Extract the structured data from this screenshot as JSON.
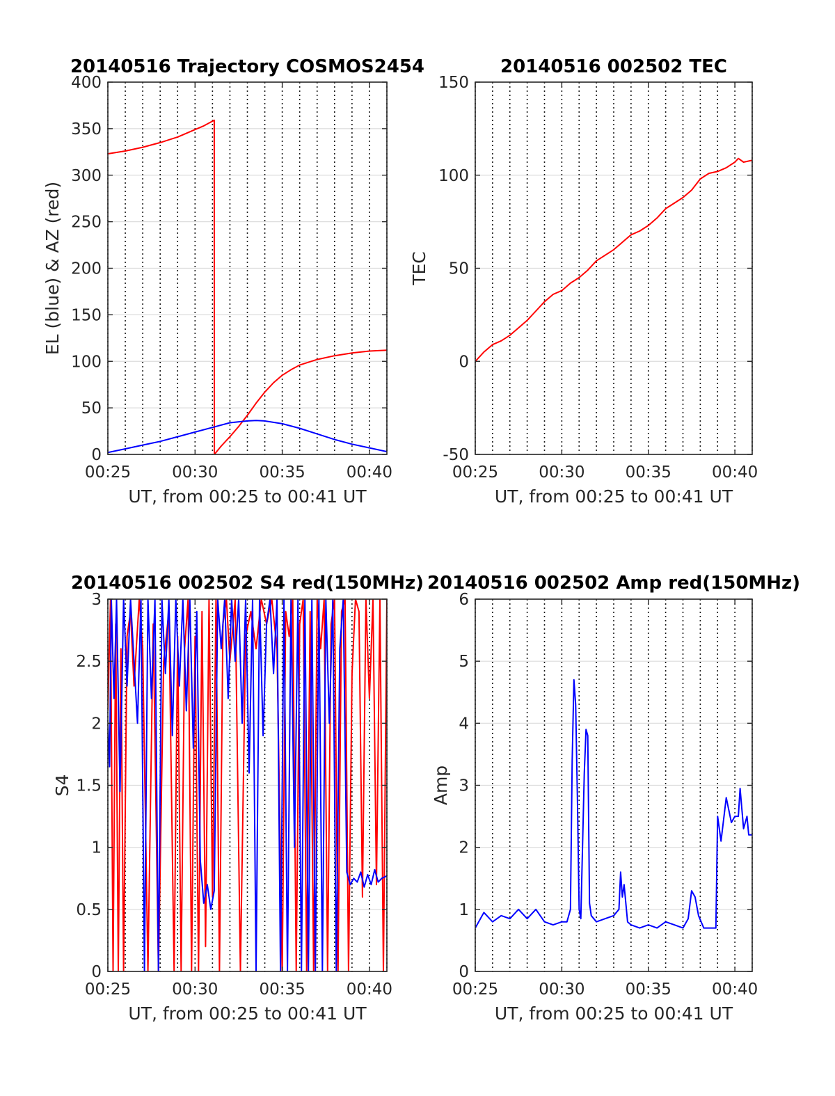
{
  "chart_data": [
    {
      "type": "line",
      "title": "20140516 Trajectory COSMOS2454",
      "xlabel": "UT, from 00:25 to 00:41 UT",
      "ylabel": "EL (blue) & AZ (red)",
      "xlim": [
        25,
        41
      ],
      "ylim": [
        0,
        400
      ],
      "xticks": [
        25,
        30,
        35,
        40
      ],
      "xtick_labels": [
        "00:25",
        "00:30",
        "00:35",
        "00:40"
      ],
      "yticks": [
        0,
        50,
        100,
        150,
        200,
        250,
        300,
        350,
        400
      ],
      "ytick_labels": [
        "0",
        "50",
        "100",
        "150",
        "200",
        "250",
        "300",
        "350",
        "400"
      ],
      "grid": true,
      "series": [
        {
          "color": "#ff0000",
          "x": [
            25,
            26,
            27,
            28,
            29,
            30,
            30.5,
            31.1,
            31.11,
            31.5,
            32,
            32.5,
            33,
            33.5,
            34,
            34.5,
            35,
            35.5,
            36,
            37,
            38,
            39,
            40,
            41
          ],
          "y": [
            323,
            326,
            330,
            335,
            341,
            349,
            353,
            359,
            0,
            9,
            19,
            30,
            42,
            55,
            67,
            77,
            85,
            91,
            96,
            102,
            106,
            109,
            111,
            112
          ]
        },
        {
          "color": "#0000ff",
          "x": [
            25,
            26,
            27,
            28,
            29,
            30,
            31,
            32,
            33,
            33.5,
            34,
            35,
            36,
            37,
            38,
            39,
            40,
            41
          ],
          "y": [
            2,
            6,
            10,
            14,
            19,
            24,
            29,
            34,
            36,
            36.5,
            36,
            33,
            28,
            22,
            16,
            11,
            7,
            3
          ]
        }
      ]
    },
    {
      "type": "line",
      "title": "20140516 002502 TEC",
      "xlabel": "UT, from 00:25 to 00:41 UT",
      "ylabel": "TEC",
      "xlim": [
        25,
        41
      ],
      "ylim": [
        -50,
        150
      ],
      "xticks": [
        25,
        30,
        35,
        40
      ],
      "xtick_labels": [
        "00:25",
        "00:30",
        "00:35",
        "00:40"
      ],
      "yticks": [
        -50,
        0,
        50,
        100,
        150
      ],
      "ytick_labels": [
        "-50",
        "0",
        "50",
        "100",
        "150"
      ],
      "grid": true,
      "series": [
        {
          "color": "#ff0000",
          "x": [
            25,
            25.5,
            26,
            26.5,
            27,
            27.5,
            28,
            28.5,
            29,
            29.5,
            30,
            30.5,
            31,
            31.5,
            32,
            32.5,
            33,
            33.5,
            34,
            34.5,
            35,
            35.5,
            36,
            36.5,
            37,
            37.5,
            38,
            38.5,
            39,
            39.5,
            40,
            40.2,
            40.5,
            41
          ],
          "y": [
            0,
            5,
            9,
            11,
            14,
            18,
            22,
            27,
            32,
            36,
            38,
            42,
            45,
            49,
            54,
            57,
            60,
            64,
            68,
            70,
            73,
            77,
            82,
            85,
            88,
            92,
            98,
            101,
            102,
            104,
            107,
            109,
            107,
            108
          ]
        }
      ]
    },
    {
      "type": "line",
      "title": "20140516 002502 S4 red(150MHz)",
      "xlabel": "UT, from 00:25 to 00:41 UT",
      "ylabel": "S4",
      "xlim": [
        25,
        41
      ],
      "ylim": [
        0,
        3
      ],
      "xticks": [
        25,
        30,
        35,
        40
      ],
      "xtick_labels": [
        "00:25",
        "00:30",
        "00:35",
        "00:40"
      ],
      "yticks": [
        0,
        0.5,
        1,
        1.5,
        2,
        2.5,
        3
      ],
      "ytick_labels": [
        "0",
        "0.5",
        "1",
        "1.5",
        "2",
        "2.5",
        "3"
      ],
      "grid": true,
      "series": [
        {
          "color": "#ff0000",
          "x": [
            25,
            25.15,
            25.3,
            25.45,
            25.6,
            25.75,
            25.9,
            26.1,
            26.3,
            26.5,
            26.8,
            27.0,
            27.3,
            27.6,
            27.9,
            28.2,
            28.5,
            28.8,
            29.0,
            29.2,
            29.4,
            29.6,
            29.8,
            30.0,
            30.2,
            30.4,
            30.6,
            30.8,
            31.0,
            31.2,
            31.4,
            31.6,
            31.8,
            32.0,
            32.3,
            32.6,
            32.9,
            33.2,
            33.5,
            33.8,
            34.1,
            34.4,
            34.7,
            35.0,
            35.2,
            35.4,
            35.6,
            35.8,
            36.0,
            36.2,
            36.4,
            36.6,
            36.8,
            37.0,
            37.2,
            37.4,
            37.6,
            37.8,
            38.0,
            38.2,
            38.4,
            38.6,
            38.8,
            39.0,
            39.2,
            39.4,
            39.6,
            39.8,
            40.0,
            40.2,
            40.4,
            40.6,
            40.8,
            41.0
          ],
          "y": [
            2.1,
            3.0,
            0.0,
            2.8,
            0.0,
            2.6,
            0.0,
            2.7,
            2.9,
            2.3,
            3.0,
            2.6,
            0.0,
            2.8,
            0.0,
            2.5,
            2.9,
            0.0,
            2.7,
            0.0,
            2.6,
            3.0,
            0.0,
            2.7,
            0.0,
            2.9,
            0.2,
            3.0,
            0.6,
            3.0,
            0.0,
            2.8,
            3.0,
            2.5,
            3.0,
            0.0,
            2.7,
            2.9,
            2.6,
            3.0,
            2.8,
            3.0,
            2.6,
            0.0,
            2.9,
            2.7,
            3.0,
            0.0,
            2.8,
            3.0,
            0.0,
            2.9,
            0.0,
            3.0,
            2.6,
            3.0,
            0.0,
            2.8,
            3.0,
            0.0,
            2.9,
            3.0,
            0.0,
            2.4,
            3.0,
            2.9,
            0.6,
            3.0,
            2.2,
            3.0,
            0.7,
            3.0,
            0.0,
            3.0
          ]
        },
        {
          "color": "#0000ff",
          "x": [
            25,
            25.1,
            25.2,
            25.35,
            25.5,
            25.7,
            25.9,
            26.1,
            26.3,
            26.5,
            26.7,
            26.9,
            27.1,
            27.3,
            27.5,
            27.7,
            27.9,
            28.1,
            28.3,
            28.5,
            28.7,
            28.9,
            29.1,
            29.3,
            29.5,
            29.7,
            29.9,
            30.1,
            30.3,
            30.5,
            30.7,
            30.9,
            31.1,
            31.3,
            31.5,
            31.7,
            31.9,
            32.1,
            32.3,
            32.5,
            32.7,
            32.9,
            33.1,
            33.3,
            33.5,
            33.7,
            33.9,
            34.1,
            34.3,
            34.5,
            34.7,
            34.9,
            35.1,
            35.3,
            35.5,
            35.7,
            35.9,
            36.1,
            36.3,
            36.5,
            36.7,
            36.9,
            37.1,
            37.3,
            37.5,
            37.7,
            37.9,
            38.1,
            38.3,
            38.5,
            38.7,
            38.9,
            39.1,
            39.3,
            39.5,
            39.7,
            39.9,
            40.1,
            40.3,
            40.5,
            40.7,
            41.0
          ],
          "y": [
            2.0,
            1.65,
            3.0,
            2.2,
            3.0,
            1.45,
            3.0,
            2.3,
            3.0,
            2.5,
            2.0,
            3.0,
            0.0,
            3.0,
            2.2,
            3.0,
            0.0,
            3.0,
            2.4,
            3.0,
            1.9,
            3.0,
            2.3,
            3.0,
            2.1,
            3.0,
            1.8,
            2.9,
            0.9,
            0.55,
            0.7,
            0.5,
            0.65,
            3.0,
            2.6,
            3.0,
            2.2,
            3.0,
            2.5,
            3.0,
            2.0,
            3.0,
            1.6,
            3.0,
            0.0,
            3.0,
            1.9,
            2.8,
            3.0,
            2.4,
            3.0,
            0.0,
            3.0,
            0.0,
            3.0,
            1.0,
            3.0,
            0.0,
            3.0,
            0.0,
            3.0,
            0.0,
            3.0,
            0.0,
            3.0,
            2.0,
            3.0,
            0.0,
            2.6,
            3.0,
            0.8,
            0.7,
            0.75,
            0.72,
            0.8,
            0.68,
            0.78,
            0.7,
            0.82,
            0.72,
            0.75,
            0.77
          ]
        }
      ]
    },
    {
      "type": "line",
      "title": "20140516 002502 Amp red(150MHz)",
      "xlabel": "UT, from 00:25 to 00:41 UT",
      "ylabel": "Amp",
      "xlim": [
        25,
        41
      ],
      "ylim": [
        0,
        6
      ],
      "xticks": [
        25,
        30,
        35,
        40
      ],
      "xtick_labels": [
        "00:25",
        "00:30",
        "00:35",
        "00:40"
      ],
      "yticks": [
        0,
        1,
        2,
        3,
        4,
        5,
        6
      ],
      "ytick_labels": [
        "0",
        "1",
        "2",
        "3",
        "4",
        "5",
        "6"
      ],
      "grid": true,
      "series": [
        {
          "color": "#0000ff",
          "x": [
            25,
            25.5,
            26,
            26.5,
            27,
            27.5,
            28,
            28.5,
            29,
            29.5,
            30,
            30.3,
            30.5,
            30.6,
            30.7,
            30.8,
            30.9,
            31.0,
            31.1,
            31.3,
            31.4,
            31.5,
            31.6,
            31.7,
            32.0,
            32.5,
            33.0,
            33.3,
            33.4,
            33.5,
            33.6,
            33.8,
            34.0,
            34.5,
            35.0,
            35.5,
            36.0,
            36.5,
            37.0,
            37.3,
            37.5,
            37.7,
            37.9,
            38.2,
            38.5,
            38.9,
            39.0,
            39.2,
            39.5,
            39.8,
            40.0,
            40.2,
            40.3,
            40.5,
            40.7,
            40.8,
            41.0
          ],
          "y": [
            0.7,
            0.95,
            0.8,
            0.9,
            0.85,
            1.0,
            0.85,
            1.0,
            0.8,
            0.75,
            0.8,
            0.8,
            1.0,
            3.4,
            4.7,
            4.3,
            2.8,
            1.0,
            0.85,
            3.2,
            3.9,
            3.8,
            1.1,
            0.9,
            0.8,
            0.85,
            0.9,
            1.0,
            1.6,
            1.2,
            1.4,
            0.8,
            0.75,
            0.7,
            0.75,
            0.7,
            0.8,
            0.75,
            0.7,
            0.85,
            1.3,
            1.2,
            0.9,
            0.7,
            0.7,
            0.7,
            2.5,
            2.1,
            2.8,
            2.4,
            2.5,
            2.5,
            2.95,
            2.3,
            2.5,
            2.2,
            2.2
          ]
        }
      ]
    }
  ]
}
